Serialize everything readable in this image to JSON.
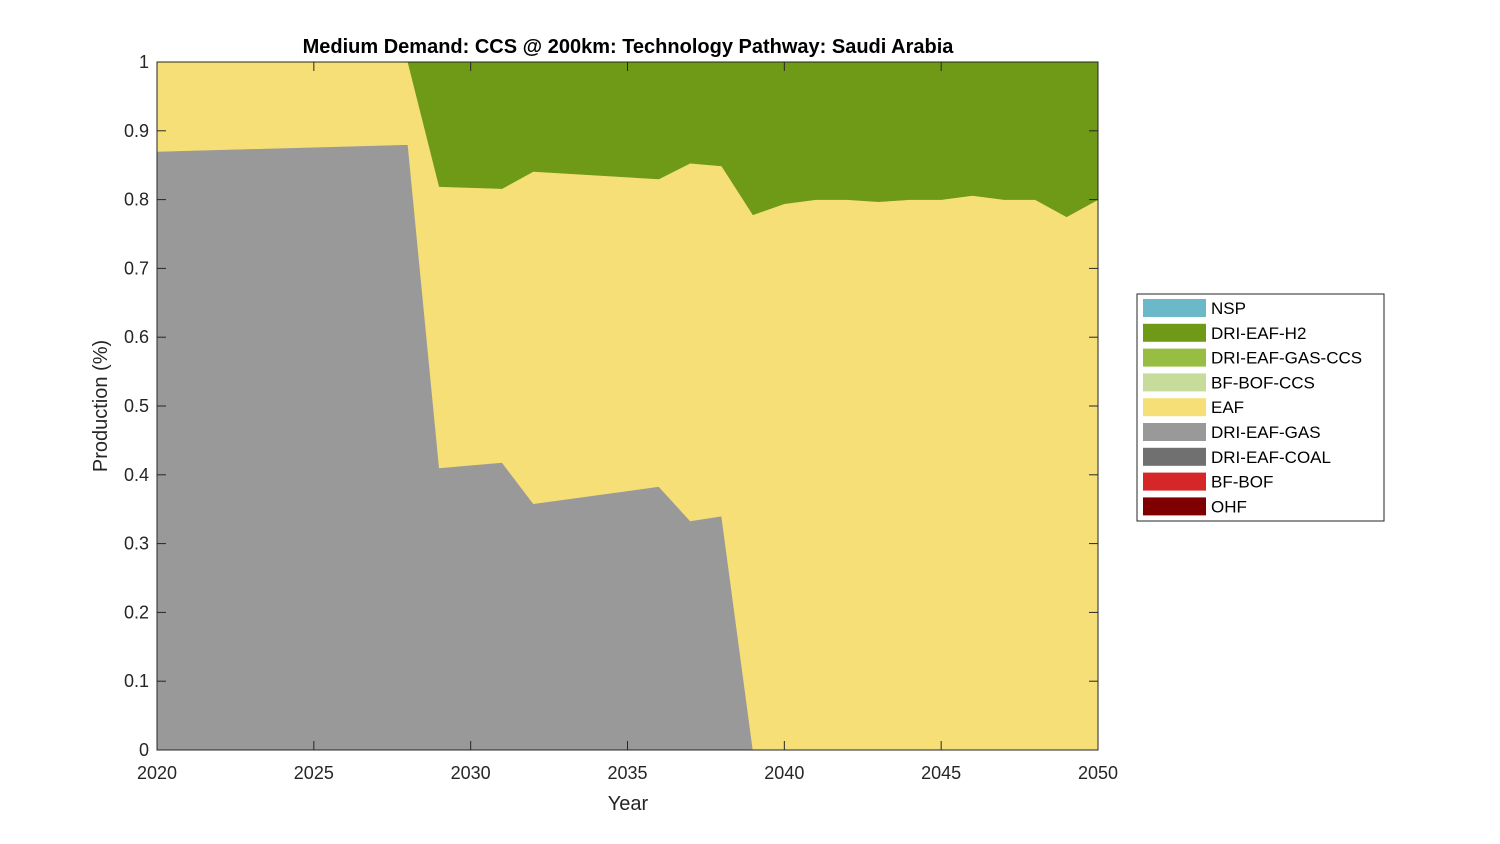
{
  "chart_data": {
    "type": "area",
    "stacked": true,
    "title": "Medium Demand: CCS @ 200km: Technology Pathway: Saudi Arabia",
    "xlabel": "Year",
    "ylabel": "Production (%)",
    "xlim": [
      2020,
      2050
    ],
    "ylim": [
      0,
      1
    ],
    "x_ticks": [
      "2020",
      "2025",
      "2030",
      "2035",
      "2040",
      "2045",
      "2050"
    ],
    "y_ticks": [
      "0",
      "0.1",
      "0.2",
      "0.3",
      "0.4",
      "0.5",
      "0.6",
      "0.7",
      "0.8",
      "0.9",
      "1"
    ],
    "grid": false,
    "legend_position": "right",
    "x": [
      2020,
      2028,
      2029,
      2031,
      2032,
      2036,
      2037,
      2038,
      2039,
      2040,
      2041,
      2042,
      2043,
      2044,
      2045,
      2046,
      2047,
      2048,
      2049,
      2050
    ],
    "series": [
      {
        "name": "OHF",
        "color": "#7f0000",
        "values": [
          0,
          0,
          0,
          0,
          0,
          0,
          0,
          0,
          0,
          0,
          0,
          0,
          0,
          0,
          0,
          0,
          0,
          0,
          0,
          0
        ]
      },
      {
        "name": "BF-BOF",
        "color": "#d62728",
        "values": [
          0,
          0,
          0,
          0,
          0,
          0,
          0,
          0,
          0,
          0,
          0,
          0,
          0,
          0,
          0,
          0,
          0,
          0,
          0,
          0
        ]
      },
      {
        "name": "DRI-EAF-COAL",
        "color": "#707070",
        "values": [
          0,
          0,
          0,
          0,
          0,
          0,
          0,
          0,
          0,
          0,
          0,
          0,
          0,
          0,
          0,
          0,
          0,
          0,
          0,
          0
        ]
      },
      {
        "name": "DRI-EAF-GAS",
        "color": "#999999",
        "values": [
          0.87,
          0.88,
          0.41,
          0.418,
          0.358,
          0.383,
          0.333,
          0.34,
          0,
          0,
          0,
          0,
          0,
          0,
          0,
          0,
          0,
          0,
          0,
          0
        ]
      },
      {
        "name": "EAF",
        "color": "#f7df78",
        "values": [
          0.13,
          0.12,
          0.409,
          0.398,
          0.483,
          0.447,
          0.52,
          0.509,
          0.778,
          0.794,
          0.8,
          0.8,
          0.797,
          0.8,
          0.8,
          0.806,
          0.8,
          0.8,
          0.775,
          0.8
        ]
      },
      {
        "name": "BF-BOF-CCS",
        "color": "#c7dc9a",
        "values": [
          0,
          0,
          0,
          0,
          0,
          0,
          0,
          0,
          0,
          0,
          0,
          0,
          0,
          0,
          0,
          0,
          0,
          0,
          0,
          0
        ]
      },
      {
        "name": "DRI-EAF-GAS-CCS",
        "color": "#98bd43",
        "values": [
          0,
          0,
          0,
          0,
          0,
          0,
          0,
          0,
          0,
          0,
          0,
          0,
          0,
          0,
          0,
          0,
          0,
          0,
          0,
          0
        ]
      },
      {
        "name": "DRI-EAF-H2",
        "color": "#6f9a18",
        "values": [
          0,
          0,
          0.181,
          0.184,
          0.159,
          0.17,
          0.147,
          0.151,
          0.222,
          0.206,
          0.2,
          0.2,
          0.203,
          0.2,
          0.2,
          0.194,
          0.2,
          0.2,
          0.225,
          0.2
        ]
      },
      {
        "name": "NSP",
        "color": "#6bb8c9",
        "values": [
          0,
          0,
          0,
          0,
          0,
          0,
          0,
          0,
          0,
          0,
          0,
          0,
          0,
          0,
          0,
          0,
          0,
          0,
          0,
          0
        ]
      }
    ],
    "legend_order": [
      "NSP",
      "DRI-EAF-H2",
      "DRI-EAF-GAS-CCS",
      "BF-BOF-CCS",
      "EAF",
      "DRI-EAF-GAS",
      "DRI-EAF-COAL",
      "BF-BOF",
      "OHF"
    ]
  }
}
